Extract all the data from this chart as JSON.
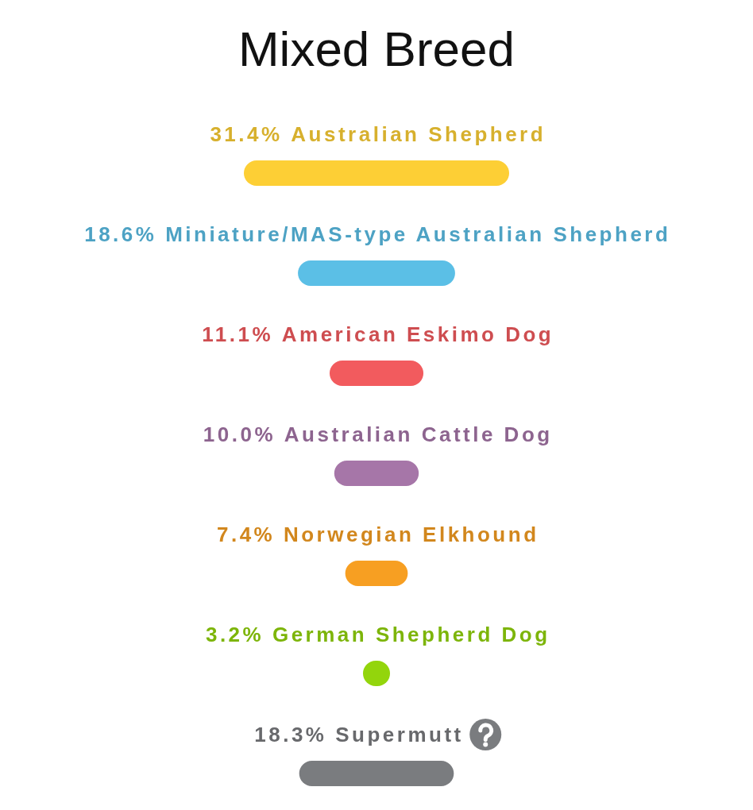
{
  "chart_data": {
    "type": "other",
    "title": "Mixed Breed",
    "categories": [
      "Australian Shepherd",
      "Miniature/MAS-type Australian Shepherd",
      "American Eskimo Dog",
      "Australian Cattle Dog",
      "Norwegian Elkhound",
      "German Shepherd Dog",
      "Supermutt"
    ],
    "values": [
      31.4,
      18.6,
      11.1,
      10.0,
      7.4,
      3.2,
      18.3
    ],
    "value_labels": [
      "31.4%",
      "18.6%",
      "11.1%",
      "10.0%",
      "7.4%",
      "3.2%",
      "18.3%"
    ],
    "colors": [
      "#fdcf35",
      "#5bbfe6",
      "#f25b5e",
      "#a676a8",
      "#f79f22",
      "#93d50c",
      "#7a7c7f"
    ]
  }
}
